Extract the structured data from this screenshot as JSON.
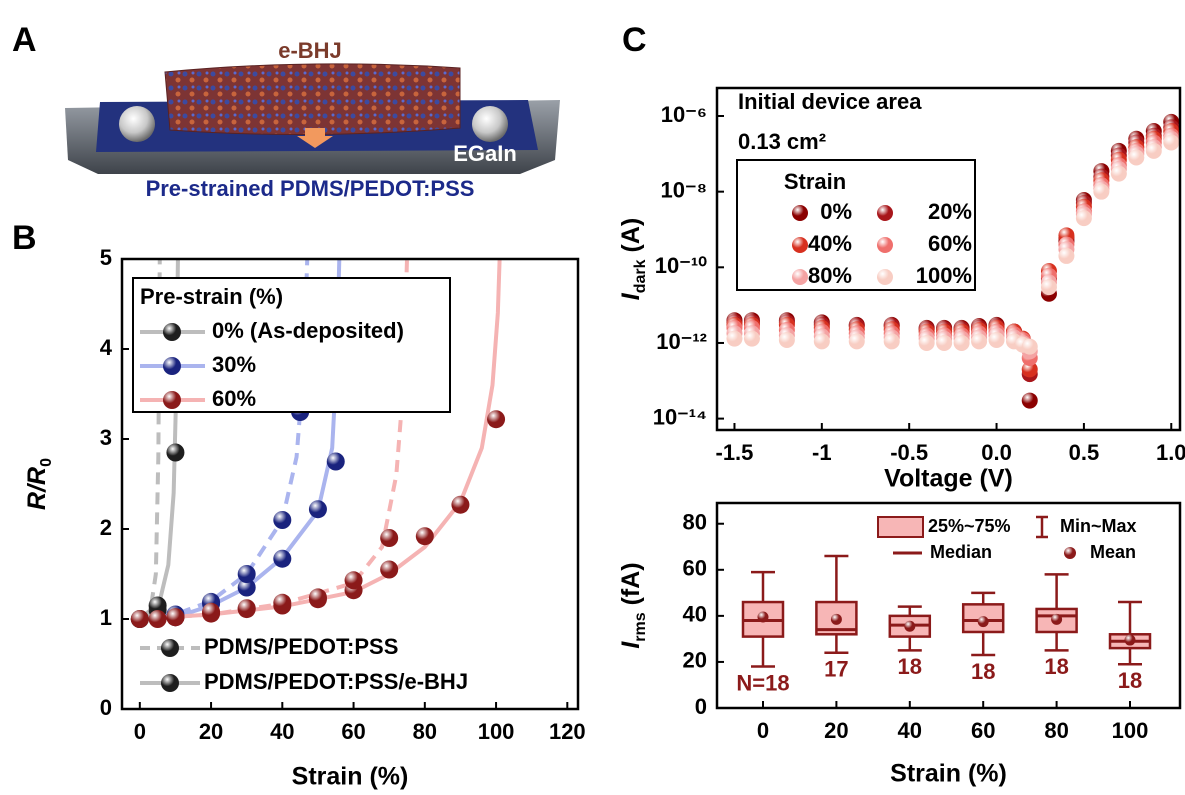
{
  "panel_labels": [
    "A",
    "B",
    "C"
  ],
  "illustration": {
    "top_label": "e-BHJ",
    "contact_label": "EGaIn",
    "substrate_label": "Pre-strained PDMS/PEDOT:PSS"
  },
  "chart_data": [
    {
      "type": "line",
      "xlabel": "Strain (%)",
      "ylabel": {
        "main": "R/R",
        "sub": "0"
      },
      "xlim": [
        -5,
        123
      ],
      "xticks": [
        0,
        20,
        40,
        60,
        80,
        100,
        120
      ],
      "ylim": [
        0,
        5
      ],
      "yticks": [
        0,
        1,
        2,
        3,
        4,
        5
      ],
      "legend": {
        "title": "Pre-strain (%)",
        "entries": [
          {
            "name": "0% (As-deposited)",
            "color": "#1e1e1e",
            "line_color": "#bdbdbd"
          },
          {
            "name": "30%",
            "color": "#1a237e",
            "line_color": "#aab4ee"
          },
          {
            "name": "60%",
            "color": "#8b1a1a",
            "line_color": "#f5b3b3"
          }
        ]
      },
      "style_legend": {
        "marker_color": "#1e1e1e",
        "line_color": "#bdbdbd",
        "entries": [
          {
            "name": "PDMS/PEDOT:PSS",
            "dashed": true
          },
          {
            "name": "PDMS/PEDOT:PSS/e-BHJ",
            "dashed": false
          }
        ]
      },
      "series": [
        {
          "color": "#1e1e1e",
          "line_color": "#bdbdbd",
          "dashed": false,
          "x": [
            0,
            5,
            10
          ],
          "values": [
            1.0,
            1.1,
            2.85
          ],
          "fit_x": [
            0,
            5,
            8,
            9.5,
            10.2,
            10.7
          ],
          "fit_values": [
            1.0,
            1.1,
            1.6,
            2.4,
            3.5,
            5
          ]
        },
        {
          "color": "#1e1e1e",
          "line_color": "#bdbdbd",
          "dashed": true,
          "x": [
            0,
            5
          ],
          "values": [
            1.0,
            1.15
          ],
          "fit_x": [
            0,
            3,
            4.5,
            5.2,
            5.6
          ],
          "fit_values": [
            1.0,
            1.1,
            1.5,
            2.8,
            5
          ]
        },
        {
          "color": "#1a237e",
          "line_color": "#aab4ee",
          "dashed": false,
          "x": [
            10,
            20,
            30,
            40,
            50,
            55
          ],
          "values": [
            1.02,
            1.17,
            1.35,
            1.67,
            2.22,
            2.75
          ],
          "fit_x": [
            0,
            10,
            20,
            30,
            40,
            50,
            54,
            55.2,
            56
          ],
          "fit_values": [
            1.0,
            1.02,
            1.15,
            1.35,
            1.68,
            2.2,
            2.9,
            3.8,
            5
          ]
        },
        {
          "color": "#1a237e",
          "line_color": "#aab4ee",
          "dashed": true,
          "x": [
            10,
            20,
            30,
            40,
            45
          ],
          "values": [
            1.05,
            1.19,
            1.5,
            2.1,
            3.3
          ],
          "fit_x": [
            0,
            10,
            20,
            30,
            40,
            44,
            46,
            47
          ],
          "fit_values": [
            1.0,
            1.05,
            1.2,
            1.5,
            2.1,
            2.8,
            3.8,
            5
          ]
        },
        {
          "color": "#8b1a1a",
          "line_color": "#f5b3b3",
          "dashed": false,
          "x": [
            0,
            5,
            10,
            20,
            30,
            40,
            50,
            60,
            70,
            80,
            90,
            100
          ],
          "values": [
            1.0,
            1.0,
            1.02,
            1.06,
            1.11,
            1.15,
            1.22,
            1.32,
            1.55,
            1.92,
            2.27,
            3.22
          ],
          "fit_x": [
            0,
            20,
            40,
            60,
            70,
            80,
            90,
            96,
            99,
            100.5,
            101
          ],
          "fit_values": [
            1.0,
            1.05,
            1.14,
            1.3,
            1.5,
            1.8,
            2.3,
            2.9,
            3.6,
            4.4,
            5
          ]
        },
        {
          "color": "#8b1a1a",
          "line_color": "#f5b3b3",
          "dashed": true,
          "x": [
            10,
            20,
            30,
            40,
            50,
            60,
            70
          ],
          "values": [
            1.02,
            1.08,
            1.12,
            1.18,
            1.24,
            1.43,
            1.9
          ],
          "fit_x": [
            0,
            20,
            40,
            60,
            68,
            72,
            74,
            75
          ],
          "fit_values": [
            1.0,
            1.05,
            1.17,
            1.4,
            1.8,
            2.6,
            3.6,
            5
          ]
        }
      ]
    },
    {
      "type": "scatter",
      "log": true,
      "xlabel": "Voltage (V)",
      "ylabel": {
        "main": "I",
        "sub": "dark",
        "rest": " (A)"
      },
      "annotations": [
        "Initial device area",
        "0.13 cm²"
      ],
      "xlim": [
        -1.6,
        1.05
      ],
      "xticks": [
        -1.5,
        -1.0,
        -0.5,
        {
          "value": 0,
          "label": "0.0"
        },
        0.5,
        {
          "value": 1,
          "label": "1.0"
        }
      ],
      "ylim": [
        5e-15,
        5.5e-06
      ],
      "yticks": [
        {
          "value": 1e-14,
          "label": "10⁻¹⁴"
        },
        {
          "value": 1e-12,
          "label": "10⁻¹²"
        },
        {
          "value": 1e-10,
          "label": "10⁻¹⁰"
        },
        {
          "value": 1e-08,
          "label": "10⁻⁸"
        },
        {
          "value": 1e-06,
          "label": "10⁻⁶"
        }
      ],
      "legend_title": "Strain",
      "x": [
        -1.5,
        -1.4,
        -1.2,
        -1.0,
        -0.8,
        -0.6,
        -0.4,
        -0.3,
        -0.2,
        -0.1,
        0,
        0.1,
        0.15,
        0.19,
        0.3,
        0.4,
        0.5,
        0.6,
        0.7,
        0.8,
        0.9,
        1.0
      ],
      "series": [
        {
          "name": "0%",
          "color": "#8b0000",
          "values": [
            4e-12,
            4e-12,
            4e-12,
            3.5e-12,
            3e-12,
            3e-12,
            2.5e-12,
            2.5e-12,
            2.5e-12,
            2.8e-12,
            3e-12,
            2e-12,
            1e-12,
            3e-14,
            2e-11,
            5e-10,
            6e-09,
            3.5e-08,
            1.2e-07,
            2.5e-07,
            4e-07,
            7e-07
          ]
        },
        {
          "name": "20%",
          "color": "#a8161b",
          "values": [
            3.5e-12,
            3.5e-12,
            3.5e-12,
            3e-12,
            2.8e-12,
            2.8e-12,
            2.3e-12,
            2.3e-12,
            2.3e-12,
            2.5e-12,
            2.7e-12,
            2e-12,
            1.2e-12,
            1.5e-13,
            5e-11,
            6e-10,
            5e-09,
            2.5e-08,
            9e-08,
            2e-07,
            3e-07,
            5e-07
          ]
        },
        {
          "name": "40%",
          "color": "#d7301f",
          "values": [
            3e-12,
            3e-12,
            3e-12,
            2.5e-12,
            2.3e-12,
            2.3e-12,
            2e-12,
            2e-12,
            2e-12,
            2.2e-12,
            2.5e-12,
            2e-12,
            1.3e-12,
            2e-13,
            8e-11,
            7e-10,
            4e-09,
            2e-08,
            7e-08,
            1.5e-07,
            2.5e-07,
            4e-07
          ]
        },
        {
          "name": "60%",
          "color": "#ef6f6c",
          "values": [
            2.5e-12,
            2.5e-12,
            2.2e-12,
            2e-12,
            1.8e-12,
            1.8e-12,
            1.6e-12,
            1.6e-12,
            1.6e-12,
            1.8e-12,
            2e-12,
            1.7e-12,
            1.2e-12,
            4e-13,
            6e-11,
            4e-10,
            3e-09,
            1.5e-08,
            5e-08,
            1.2e-07,
            2e-07,
            3e-07
          ]
        },
        {
          "name": "80%",
          "color": "#f4a3a3",
          "values": [
            1.8e-12,
            1.8e-12,
            1.6e-12,
            1.5e-12,
            1.4e-12,
            1.4e-12,
            1.3e-12,
            1.3e-12,
            1.3e-12,
            1.4e-12,
            1.6e-12,
            1.4e-12,
            1e-12,
            6e-13,
            4e-11,
            3e-10,
            2.5e-09,
            1.2e-08,
            4e-08,
            1e-07,
            1.5e-07,
            2.5e-07
          ]
        },
        {
          "name": "100%",
          "color": "#f8cdc3",
          "values": [
            1.3e-12,
            1.3e-12,
            1.2e-12,
            1.1e-12,
            1.1e-12,
            1.1e-12,
            1e-12,
            1e-12,
            1e-12,
            1.1e-12,
            1.2e-12,
            1.1e-12,
            9e-13,
            8e-13,
            3e-11,
            2e-10,
            2e-09,
            1e-08,
            3e-08,
            8e-08,
            1.2e-07,
            2e-07
          ]
        }
      ]
    },
    {
      "type": "box",
      "xlabel": "Strain (%)",
      "ylabel": {
        "main": "I",
        "sub": "rms",
        "rest": " (fA)"
      },
      "categories": [
        "0",
        "20",
        "40",
        "60",
        "80",
        "100"
      ],
      "ylim": [
        0,
        89
      ],
      "yticks": [
        0,
        20,
        40,
        60,
        80
      ],
      "color": "#8b1a1a",
      "fill": "#f7b6b6",
      "min": [
        18,
        24,
        25,
        23,
        25,
        19
      ],
      "q1": [
        31,
        32,
        31,
        33,
        33,
        26
      ],
      "median": [
        38,
        34,
        36,
        38,
        40,
        29
      ],
      "q3": [
        46,
        46,
        40,
        45,
        43,
        32
      ],
      "max": [
        59,
        66,
        44,
        50,
        58,
        46
      ],
      "mean": [
        39.5,
        38.5,
        35.5,
        37.5,
        38.5,
        29.5
      ],
      "n": [
        18,
        17,
        18,
        18,
        18,
        18
      ],
      "n_labels": [
        "N=18",
        "17",
        "18",
        "18",
        "18",
        "18"
      ],
      "legend": {
        "box": "25%~75%",
        "whisker": "Min~Max",
        "median": "Median",
        "mean": "Mean"
      }
    }
  ]
}
